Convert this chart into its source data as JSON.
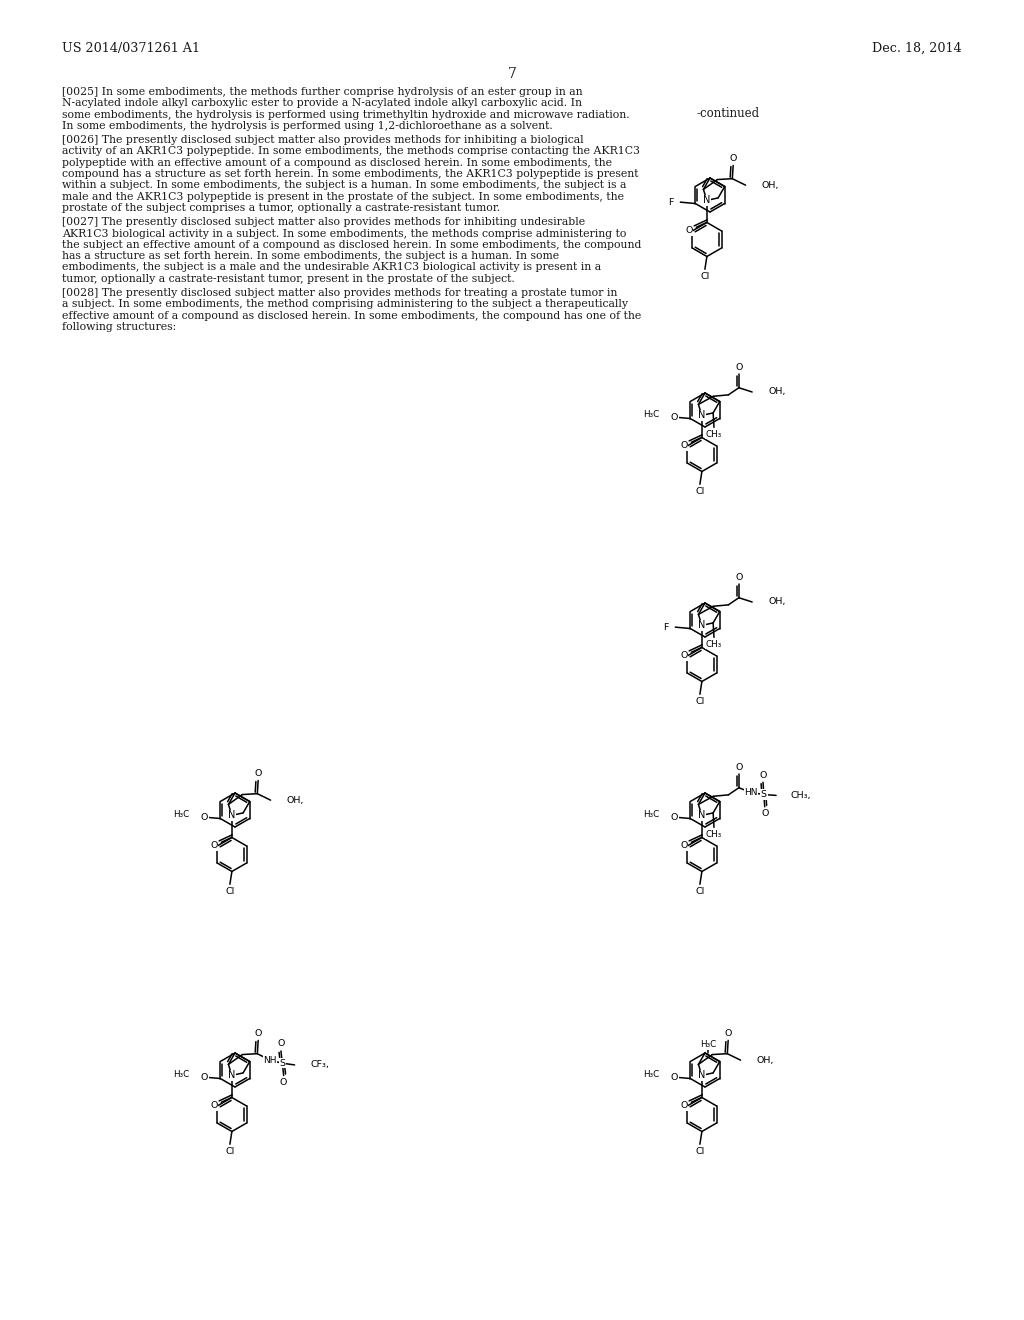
{
  "header_left": "US 2014/0371261 A1",
  "header_right": "Dec. 18, 2014",
  "page_number": "7",
  "continued_label": "-continued",
  "background_color": "#ffffff",
  "text_color": "#1a1a1a",
  "paragraphs": [
    {
      "label": "[0025]",
      "text": "In some embodiments, the methods further comprise hydrolysis of an ester group in an N-acylated indole alkyl carboxylic ester to provide a N-acylated indole alkyl carboxylic acid. In some embodiments, the hydrolysis is performed using trimethyltin hydroxide and microwave radiation. In some embodiments, the hydrolysis is performed using 1,2-dichloroethane as a solvent."
    },
    {
      "label": "[0026]",
      "text": "The presently disclosed subject matter also provides methods for inhibiting a biological activity of an AKR1C3 polypeptide. In some embodiments, the methods comprise contacting the AKR1C3 polypeptide with an effective amount of a compound as disclosed herein. In some embodiments, the compound has a structure as set forth herein. In some embodiments, the AKR1C3 polypeptide is present within a subject. In some embodiments, the subject is a human. In some embodiments, the subject is a male and the AKR1C3 polypeptide is present in the prostate of the subject. In some embodiments, the prostate of the subject comprises a tumor, optionally a castrate-resistant tumor."
    },
    {
      "label": "[0027]",
      "text": "The presently disclosed subject matter also provides methods for inhibiting undesirable AKR1C3 biological activity in a subject. In some embodiments, the methods comprise administering to the subject an effective amount of a compound as disclosed herein. In some embodiments, the compound has a structure as set forth herein. In some embodiments, the subject is a human. In some embodiments, the subject is a male and the undesirable AKR1C3 biological activity is present in a tumor, optionally a castrate-resistant tumor, present in the prostate of the subject."
    },
    {
      "label": "[0028]",
      "text": "The presently disclosed subject matter also provides methods for treating a prostate tumor in a subject. In some embodiments, the method comprising administering to the subject a therapeutically effective amount of a compound as disclosed herein. In some embodiments, the compound has one of the following structures:"
    }
  ]
}
